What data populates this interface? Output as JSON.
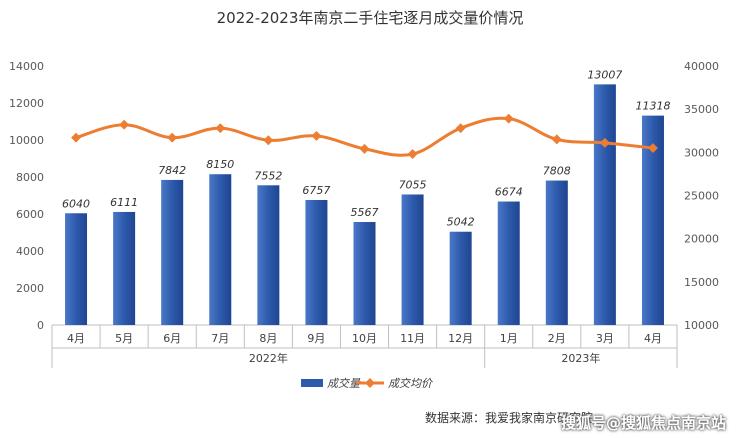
{
  "header": {
    "title": "2022-2023年南京二手住宅逐月成交量价情况"
  },
  "chart_data": {
    "type": "bar",
    "title": "2022-2023年南京二手住宅逐月成交量价情况",
    "categories": [
      "4月",
      "5月",
      "6月",
      "7月",
      "8月",
      "9月",
      "10月",
      "11月",
      "12月",
      "1月",
      "2月",
      "3月",
      "4月"
    ],
    "groups": [
      {
        "label": "2022年",
        "from": 0,
        "to": 8
      },
      {
        "label": "2023年",
        "from": 9,
        "to": 12
      }
    ],
    "series": [
      {
        "name": "成交量",
        "type": "bar",
        "axis": "left",
        "color": "#2E5AAC",
        "values": [
          6040,
          6111,
          7842,
          8150,
          7552,
          6757,
          5567,
          7055,
          5042,
          6674,
          7808,
          13007,
          11318
        ],
        "labels": [
          "6040",
          "6111",
          "7842",
          "8150",
          "7552",
          "6757",
          "5567",
          "7055",
          "5042",
          "6674",
          "7808",
          "13007",
          "11318"
        ]
      },
      {
        "name": "成交均价",
        "type": "line",
        "axis": "right",
        "color": "#ED7D31",
        "values": [
          31700,
          33200,
          31700,
          32800,
          31400,
          31900,
          30400,
          29800,
          32800,
          33900,
          31500,
          31100,
          30500
        ]
      }
    ],
    "y_left": {
      "min": 0,
      "max": 14000,
      "step": 2000,
      "ticks": [
        "0",
        "2000",
        "4000",
        "6000",
        "8000",
        "10000",
        "12000",
        "14000"
      ]
    },
    "y_right": {
      "min": 10000,
      "max": 40000,
      "step": 5000,
      "ticks": [
        "10000",
        "15000",
        "20000",
        "25000",
        "30000",
        "35000",
        "40000"
      ]
    },
    "legend_position": "bottom",
    "grid": false
  },
  "footer": {
    "source": "数据来源：我爱我家南京研究院",
    "watermark": "搜狐号@搜狐焦点南京站"
  }
}
